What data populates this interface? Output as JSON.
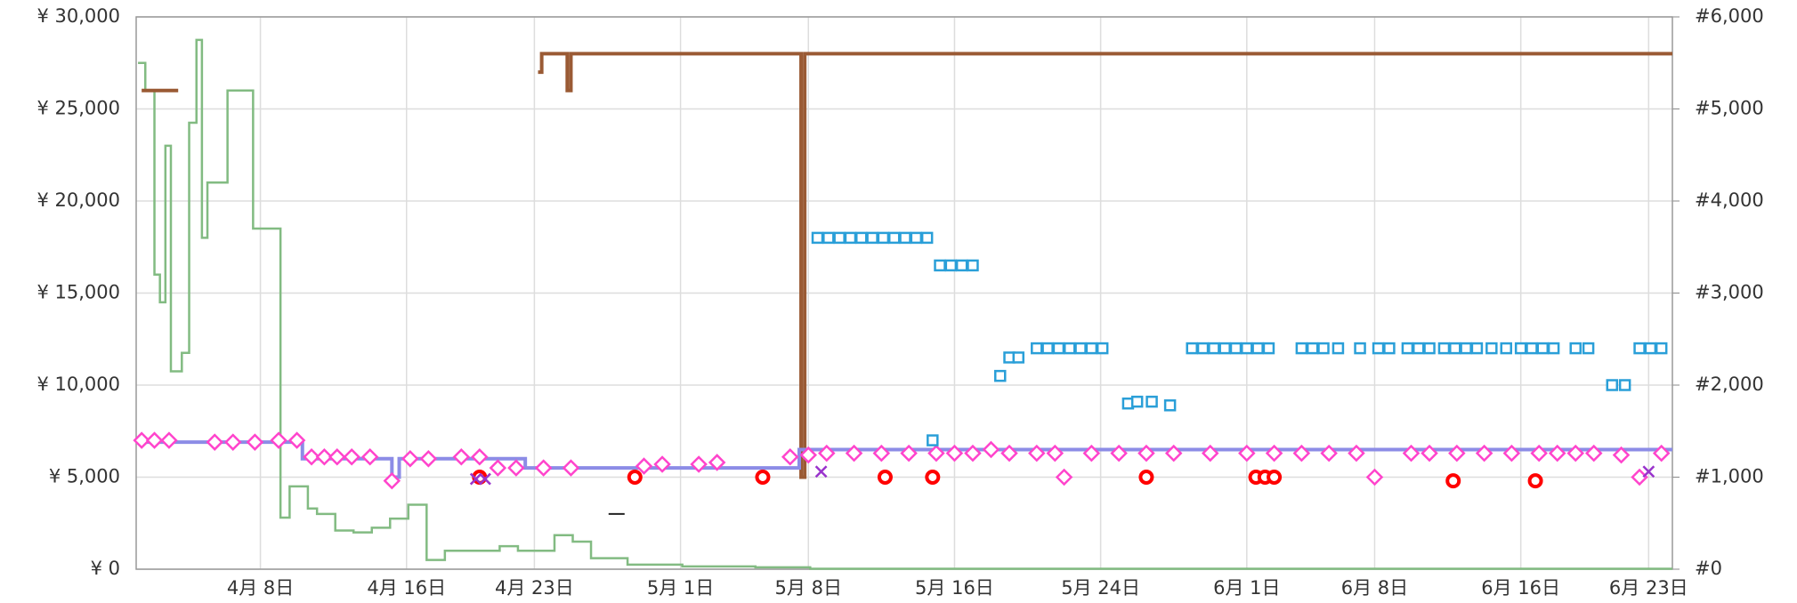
{
  "chart_data": {
    "type": "line",
    "xlim": [
      1.2,
      85.3
    ],
    "xticks": [
      {
        "value": 8,
        "label": "4月 8日"
      },
      {
        "value": 16,
        "label": "4月 16日"
      },
      {
        "value": 23,
        "label": "4月 23日"
      },
      {
        "value": 31,
        "label": "5月 1日"
      },
      {
        "value": 38,
        "label": "5月 8日"
      },
      {
        "value": 46,
        "label": "5月 16日"
      },
      {
        "value": 54,
        "label": "5月 24日"
      },
      {
        "value": 62,
        "label": "6月 1日"
      },
      {
        "value": 69,
        "label": "6月 8日"
      },
      {
        "value": 77,
        "label": "6月 16日"
      },
      {
        "value": 84,
        "label": "6月 23日"
      }
    ],
    "ylim": [
      0,
      30000
    ],
    "yticks": [
      {
        "value": 0,
        "label": "¥ 0"
      },
      {
        "value": 5000,
        "label": "¥ 5,000"
      },
      {
        "value": 10000,
        "label": "¥ 10,000"
      },
      {
        "value": 15000,
        "label": "¥ 15,000"
      },
      {
        "value": 20000,
        "label": "¥ 20,000"
      },
      {
        "value": 25000,
        "label": "¥ 25,000"
      },
      {
        "value": 30000,
        "label": "¥ 30,000"
      }
    ],
    "y2lim": [
      0,
      6000
    ],
    "y2ticks": [
      {
        "value": 0,
        "label": "#0"
      },
      {
        "value": 1000,
        "label": "#1,000"
      },
      {
        "value": 2000,
        "label": "#2,000"
      },
      {
        "value": 3000,
        "label": "#3,000"
      },
      {
        "value": 4000,
        "label": "#4,000"
      },
      {
        "value": 5000,
        "label": "#5,000"
      },
      {
        "value": 6000,
        "label": "#6,000"
      }
    ],
    "grid": true,
    "series": [
      {
        "color": "#82bb82",
        "marker": "step",
        "axis": "y2",
        "x": [
          1.3,
          1.7,
          2.2,
          2.5,
          2.8,
          3.1,
          3.7,
          4.1,
          4.5,
          4.8,
          5.1,
          5.4,
          6.2,
          7.6,
          8.6,
          9.1,
          9.6,
          10.6,
          11.1,
          12.1,
          13.1,
          14.1,
          15.1,
          16.1,
          17.1,
          18.1,
          21.1,
          22.1,
          24.1,
          25.1,
          26.1,
          28.1,
          31.1,
          35.1,
          38.1,
          85.3
        ],
        "values": [
          5500,
          5200,
          3200,
          2900,
          4600,
          2150,
          2350,
          4850,
          5750,
          3600,
          4200,
          4200,
          5200,
          3700,
          3700,
          560,
          900,
          660,
          600,
          420,
          400,
          450,
          550,
          700,
          100,
          200,
          250,
          200,
          370,
          300,
          120,
          50,
          30,
          20,
          5,
          5
        ]
      },
      {
        "color": "#9a5a34",
        "marker": "step",
        "x": [
          1.5,
          3.5,
          3.6,
          23.2,
          23.4,
          24.8,
          25.0,
          37.6,
          37.8,
          85.3
        ],
        "values": [
          26000,
          26000,
          null,
          27000,
          28000,
          26000,
          28000,
          5000,
          28000,
          28000
        ]
      },
      {
        "color": "#8c8ce6",
        "marker": "step",
        "x": [
          1.2,
          10.3,
          15.2,
          15.6,
          22.5,
          37.0,
          37.5,
          85.3
        ],
        "values": [
          6900,
          6000,
          5000,
          6000,
          5500,
          5500,
          6500,
          6500
        ]
      },
      {
        "color": "#ff44cc",
        "marker": "diamond",
        "x": [
          1.5,
          2.2,
          3,
          5.5,
          6.5,
          7.7,
          9,
          10,
          10.8,
          11.5,
          12.2,
          13,
          14,
          15.2,
          16.2,
          17.2,
          19,
          20,
          21,
          22,
          23.5,
          25,
          29,
          30,
          32,
          33,
          37,
          38,
          39,
          40.5,
          42,
          43.5,
          45,
          46,
          47,
          48,
          49,
          50.5,
          51.5,
          52,
          53.5,
          55,
          56.5,
          58,
          60,
          62,
          63.5,
          65,
          66.5,
          68,
          69,
          71,
          72,
          73.5,
          75,
          76.5,
          78,
          79,
          80,
          81,
          82.5,
          83.5,
          84.7
        ],
        "values": [
          7000,
          7000,
          7000,
          6900,
          6900,
          6900,
          7000,
          7000,
          6100,
          6100,
          6100,
          6100,
          6100,
          4800,
          6000,
          6000,
          6100,
          6100,
          5500,
          5500,
          5500,
          5500,
          5600,
          5700,
          5700,
          5800,
          6100,
          6200,
          6300,
          6300,
          6300,
          6300,
          6300,
          6300,
          6300,
          6500,
          6300,
          6300,
          6300,
          5000,
          6300,
          6300,
          6300,
          6300,
          6300,
          6300,
          6300,
          6300,
          6300,
          6300,
          5000,
          6300,
          6300,
          6300,
          6300,
          6300,
          6300,
          6300,
          6300,
          6300,
          6200,
          5000,
          6300
        ]
      },
      {
        "color": "#ff0000",
        "marker": "circle",
        "x": [
          20,
          28.5,
          35.5,
          42.2,
          44.8,
          56.5,
          62.5,
          63,
          63.5,
          73.3,
          77.8
        ],
        "values": [
          5000,
          5000,
          5000,
          5000,
          5000,
          5000,
          5000,
          5000,
          5000,
          4800,
          4800
        ]
      },
      {
        "color": "#2a9fd8",
        "marker": "square",
        "x": [
          38.5,
          39.1,
          39.7,
          40.3,
          40.9,
          41.5,
          42.1,
          42.7,
          43.3,
          43.9,
          44.5,
          44.8,
          45.2,
          45.8,
          46.4,
          47,
          48.5,
          49,
          49.5,
          50.5,
          51.1,
          51.7,
          52.3,
          52.9,
          53.5,
          54.1,
          55.5,
          56,
          56.8,
          57.8,
          59,
          59.6,
          60.2,
          60.8,
          61.4,
          62,
          62.6,
          63.2,
          65,
          65.6,
          66.2,
          67,
          68.2,
          69.2,
          69.8,
          70.8,
          71.4,
          72,
          72.8,
          73.4,
          74,
          74.6,
          75.4,
          76.2,
          77,
          77.6,
          78.2,
          78.8,
          80,
          80.7,
          82,
          82.7,
          83.5,
          84.1,
          84.7
        ],
        "values": [
          18000,
          18000,
          18000,
          18000,
          18000,
          18000,
          18000,
          18000,
          18000,
          18000,
          18000,
          7000,
          16500,
          16500,
          16500,
          16500,
          10500,
          11500,
          11500,
          12000,
          12000,
          12000,
          12000,
          12000,
          12000,
          12000,
          9000,
          9100,
          9100,
          8900,
          12000,
          12000,
          12000,
          12000,
          12000,
          12000,
          12000,
          12000,
          12000,
          12000,
          12000,
          12000,
          12000,
          12000,
          12000,
          12000,
          12000,
          12000,
          12000,
          12000,
          12000,
          12000,
          12000,
          12000,
          12000,
          12000,
          12000,
          12000,
          12000,
          12000,
          10000,
          10000,
          12000,
          12000,
          12000
        ]
      },
      {
        "color": "#9933cc",
        "marker": "x",
        "x": [
          19.8,
          20.3,
          38.7,
          84
        ],
        "values": [
          4900,
          4900,
          5300,
          5300
        ]
      },
      {
        "color": "#222222",
        "marker": "dash",
        "x": [
          27.5
        ],
        "values": [
          3000
        ]
      }
    ]
  }
}
